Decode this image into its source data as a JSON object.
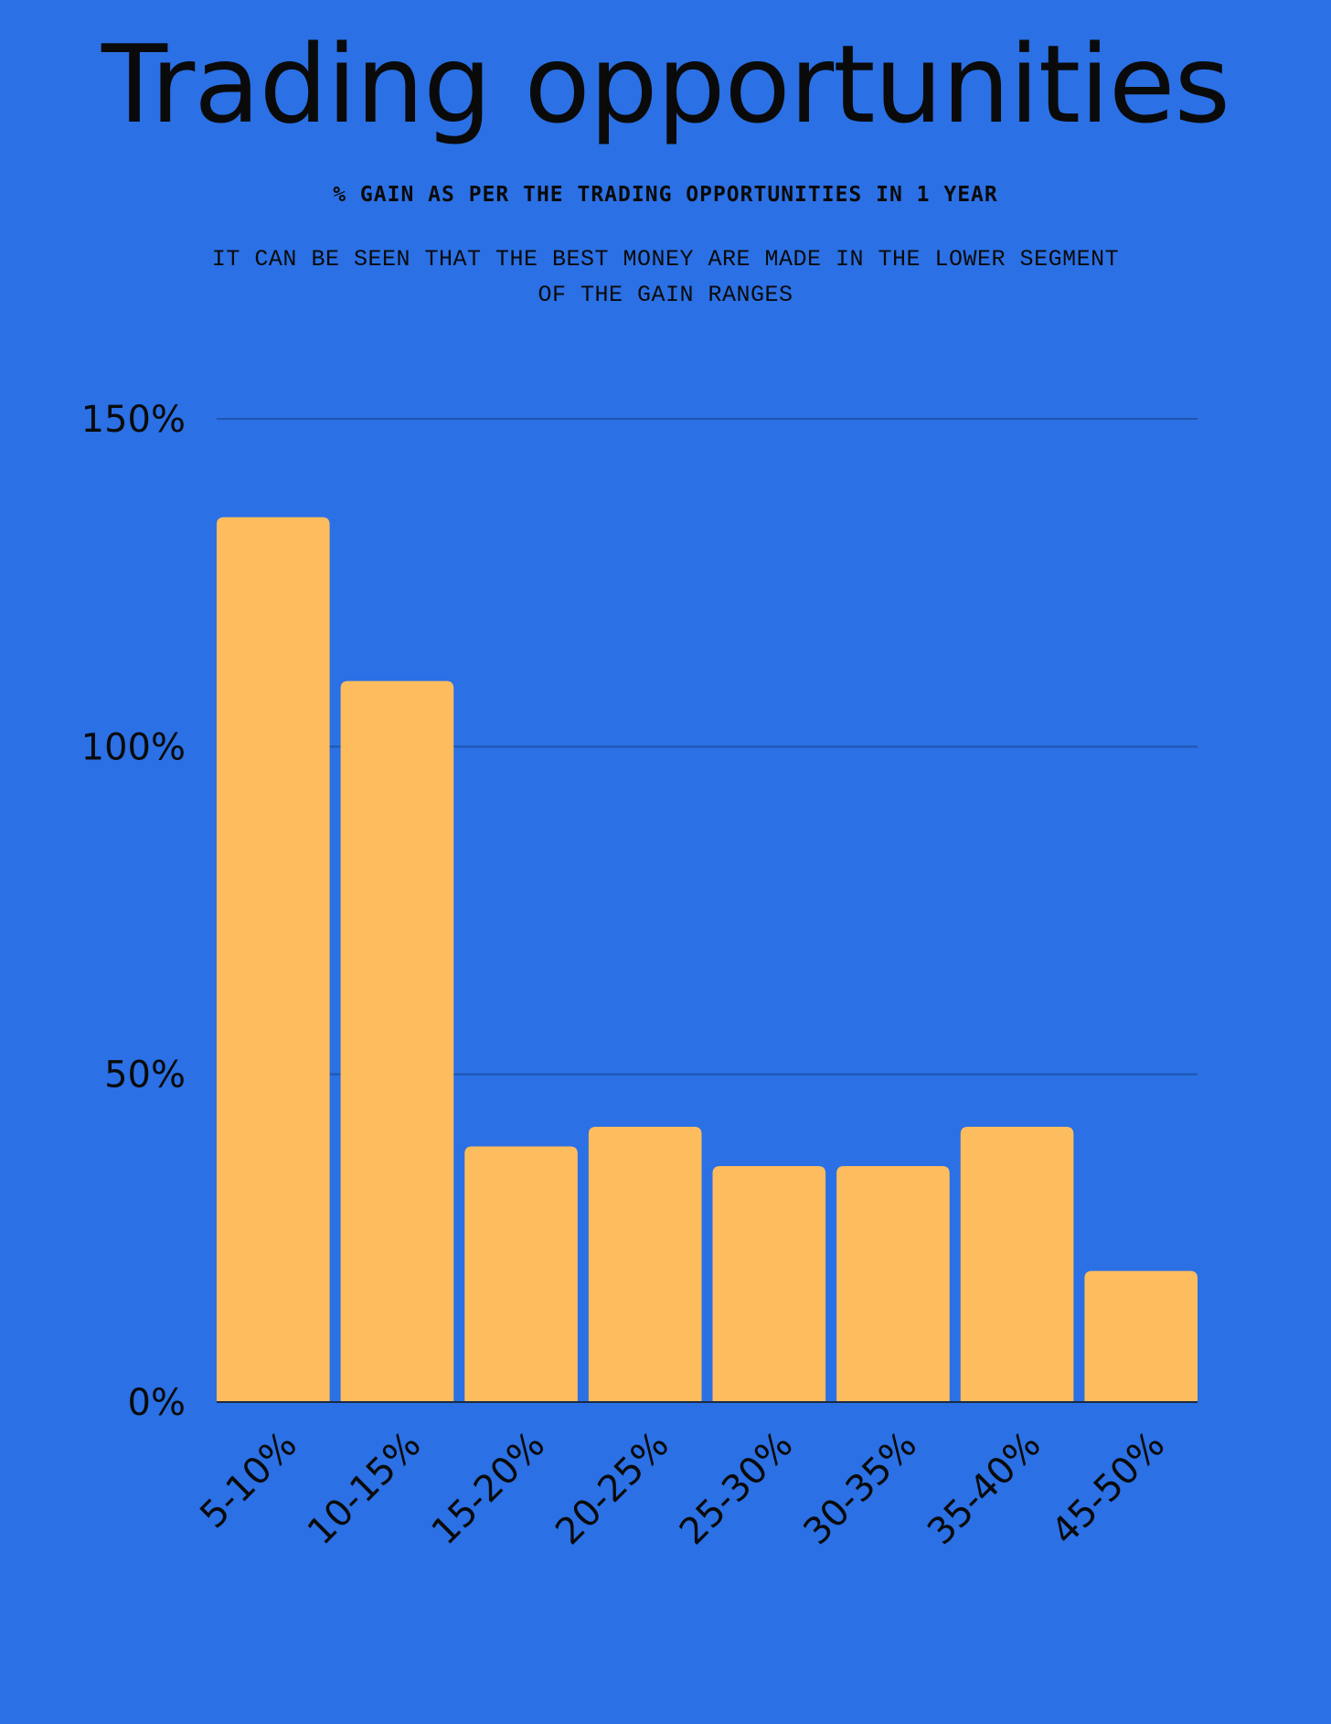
{
  "colors": {
    "background": "#2B70E4",
    "bar": "#FDBD5E",
    "gridline": "#1F55B0",
    "text": "#0A0A0A"
  },
  "header": {
    "title": "Trading opportunities",
    "subtitle": "% GAIN AS PER THE TRADING OPPORTUNITIES IN 1 YEAR",
    "description": "IT CAN BE SEEN THAT THE BEST MONEY ARE MADE IN THE LOWER SEGMENT OF THE GAIN RANGES"
  },
  "chart_data": {
    "type": "bar",
    "title": "Trading opportunities",
    "subtitle": "% GAIN AS PER THE TRADING OPPORTUNITIES IN 1 YEAR",
    "xlabel": "",
    "ylabel": "",
    "categories": [
      "5-10%",
      "10-15%",
      "15-20%",
      "20-25%",
      "25-30%",
      "30-35%",
      "35-40%",
      "45-50%"
    ],
    "values": [
      135,
      110,
      39,
      42,
      36,
      36,
      42,
      20
    ],
    "ylim": [
      0,
      150
    ],
    "yticks": [
      0,
      50,
      100,
      150
    ],
    "ytick_labels": [
      "0%",
      "50%",
      "100%",
      "150%"
    ],
    "grid": true,
    "legend": "none"
  }
}
